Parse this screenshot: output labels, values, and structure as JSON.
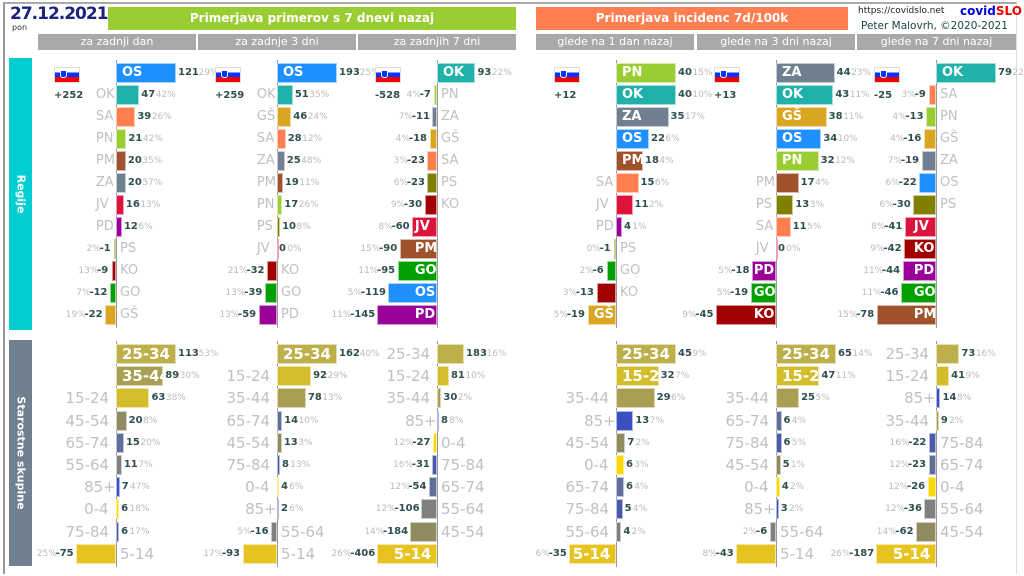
{
  "header": {
    "date": "27.12.2021",
    "day": "pon",
    "title_cases": "Primerjava primerov s 7 dnevi nazaj",
    "title_incidence": "Primerjava incidenc 7d/100k",
    "url": "https://covidslo.net",
    "brand_a": "covid",
    "brand_b": "SLO",
    "author": "Peter Malovrh, ©2020-2021",
    "columns": [
      "za zadnji dan",
      "za zadnje 3 dni",
      "za zadnjih 7 dni",
      "glede na 1 dan nazaj",
      "glede na 3 dni nazaj",
      "glede na 7 dni nazaj"
    ]
  },
  "sections": {
    "regions": "Regije",
    "ages": "Starostne skupine"
  },
  "colors": {
    "cases_banner": "#9acd32",
    "incidence_banner": "#ff7f50",
    "regions_side": "#00ced1",
    "ages_side": "#708090",
    "categories": {
      "OS": "#1e90ff",
      "OK": "#20b2aa",
      "SA": "#ff7f50",
      "PN": "#9acd32",
      "PM": "#a0522d",
      "ZA": "#708090",
      "JV": "#dc143c",
      "PD": "#990099",
      "PS": "#808000",
      "KO": "#a00000",
      "GO": "#00a000",
      "GŠ": "#daa520",
      "25-34": "#bdb04a",
      "35-44": "#a89f52",
      "15-24": "#d4bc2a",
      "45-54": "#8f8a60",
      "65-74": "#5f6f9a",
      "55-64": "#808080",
      "85+": "#3a50c0",
      "0-4": "#ffd700",
      "75-84": "#4a5aaa",
      "5-14": "#e6c31e"
    }
  },
  "chart_data": [
    {
      "type": "bar",
      "orientation": "horizontal",
      "panel": "za zadnji dan",
      "group": "Regije",
      "total": "+252",
      "rows": [
        [
          "OS",
          121,
          "29%"
        ],
        [
          "OK",
          47,
          "42%"
        ],
        [
          "SA",
          39,
          "26%"
        ],
        [
          "PN",
          21,
          "42%"
        ],
        [
          "PM",
          20,
          "35%"
        ],
        [
          "ZA",
          20,
          "57%"
        ],
        [
          "JV",
          16,
          "13%"
        ],
        [
          "PD",
          12,
          "6%"
        ],
        [
          "PS",
          -1,
          "2%"
        ],
        [
          "KO",
          -9,
          "13%"
        ],
        [
          "GO",
          -12,
          "7%"
        ],
        [
          "GŠ",
          -22,
          "19%"
        ]
      ]
    },
    {
      "type": "bar",
      "orientation": "horizontal",
      "panel": "za zadnje 3 dni",
      "group": "Regije",
      "total": "+259",
      "rows": [
        [
          "OS",
          193,
          "25%"
        ],
        [
          "OK",
          51,
          "35%"
        ],
        [
          "GŠ",
          46,
          "24%"
        ],
        [
          "SA",
          28,
          "12%"
        ],
        [
          "ZA",
          25,
          "48%"
        ],
        [
          "PM",
          19,
          "11%"
        ],
        [
          "PN",
          17,
          "26%"
        ],
        [
          "PS",
          10,
          "8%"
        ],
        [
          "JV",
          0,
          "0%"
        ],
        [
          "KO",
          -32,
          "21%"
        ],
        [
          "GO",
          -39,
          "13%"
        ],
        [
          "PD",
          -59,
          "13%"
        ]
      ]
    },
    {
      "type": "bar",
      "orientation": "horizontal",
      "panel": "za zadnjih 7 dni",
      "group": "Regije",
      "total": "-528",
      "rows": [
        [
          "OK",
          93,
          "22%"
        ],
        [
          "PN",
          -7,
          "4%"
        ],
        [
          "ZA",
          -11,
          "7%"
        ],
        [
          "GŠ",
          -18,
          "4%"
        ],
        [
          "SA",
          -23,
          "3%"
        ],
        [
          "PS",
          -23,
          "6%"
        ],
        [
          "KO",
          -30,
          "9%"
        ],
        [
          "JV",
          -60,
          "8%"
        ],
        [
          "PM",
          -90,
          "15%"
        ],
        [
          "GO",
          -95,
          "11%"
        ],
        [
          "OS",
          -119,
          "5%"
        ],
        [
          "PD",
          -145,
          "11%"
        ]
      ]
    },
    {
      "type": "bar",
      "orientation": "horizontal",
      "panel": "glede na 1 dan nazaj",
      "group": "Regije",
      "total": "+12",
      "rows": [
        [
          "PN",
          40,
          "15%"
        ],
        [
          "OK",
          40,
          "10%"
        ],
        [
          "ZA",
          35,
          "17%"
        ],
        [
          "OS",
          22,
          "6%"
        ],
        [
          "PM",
          18,
          "4%"
        ],
        [
          "SA",
          15,
          "6%"
        ],
        [
          "JV",
          11,
          "2%"
        ],
        [
          "PD",
          4,
          "1%"
        ],
        [
          "PS",
          -1,
          "0%"
        ],
        [
          "GO",
          -6,
          "2%"
        ],
        [
          "KO",
          -13,
          "3%"
        ],
        [
          "GŠ",
          -19,
          "5%"
        ]
      ]
    },
    {
      "type": "bar",
      "orientation": "horizontal",
      "panel": "glede na 3 dni nazaj",
      "group": "Regije",
      "total": "+13",
      "rows": [
        [
          "ZA",
          44,
          "23%"
        ],
        [
          "OK",
          43,
          "11%"
        ],
        [
          "GŠ",
          38,
          "11%"
        ],
        [
          "OS",
          34,
          "10%"
        ],
        [
          "PN",
          32,
          "12%"
        ],
        [
          "PM",
          17,
          "4%"
        ],
        [
          "PS",
          13,
          "3%"
        ],
        [
          "SA",
          11,
          "5%"
        ],
        [
          "JV",
          0,
          "0%"
        ],
        [
          "PD",
          -18,
          "5%"
        ],
        [
          "GO",
          -19,
          "5%"
        ],
        [
          "KO",
          -45,
          "9%"
        ]
      ]
    },
    {
      "type": "bar",
      "orientation": "horizontal",
      "panel": "glede na 7 dni nazaj",
      "group": "Regije",
      "total": "-25",
      "rows": [
        [
          "OK",
          79,
          "22%"
        ],
        [
          "SA",
          -9,
          "3%"
        ],
        [
          "PN",
          -13,
          "4%"
        ],
        [
          "GŠ",
          -16,
          "4%"
        ],
        [
          "ZA",
          -19,
          "7%"
        ],
        [
          "OS",
          -22,
          "6%"
        ],
        [
          "PS",
          -30,
          "6%"
        ],
        [
          "JV",
          -41,
          "8%"
        ],
        [
          "KO",
          -42,
          "9%"
        ],
        [
          "PD",
          -44,
          "11%"
        ],
        [
          "GO",
          -46,
          "11%"
        ],
        [
          "PM",
          -78,
          "15%"
        ]
      ]
    },
    {
      "type": "bar",
      "orientation": "horizontal",
      "panel": "za zadnji dan",
      "group": "Starostne skupine",
      "rows": [
        [
          "25-34",
          113,
          "53%"
        ],
        [
          "35-44",
          89,
          "30%"
        ],
        [
          "15-24",
          63,
          "38%"
        ],
        [
          "45-54",
          20,
          "8%"
        ],
        [
          "65-74",
          15,
          "20%"
        ],
        [
          "55-64",
          11,
          "7%"
        ],
        [
          "85+",
          7,
          "47%"
        ],
        [
          "0-4",
          6,
          "18%"
        ],
        [
          "75-84",
          6,
          "17%"
        ],
        [
          "5-14",
          -75,
          "25%"
        ]
      ]
    },
    {
      "type": "bar",
      "orientation": "horizontal",
      "panel": "za zadnje 3 dni",
      "group": "Starostne skupine",
      "rows": [
        [
          "25-34",
          162,
          "40%"
        ],
        [
          "15-24",
          92,
          "29%"
        ],
        [
          "35-44",
          78,
          "13%"
        ],
        [
          "65-74",
          14,
          "10%"
        ],
        [
          "45-54",
          13,
          "3%"
        ],
        [
          "75-84",
          8,
          "13%"
        ],
        [
          "0-4",
          4,
          "6%"
        ],
        [
          "85+",
          2,
          "6%"
        ],
        [
          "55-64",
          -16,
          "5%"
        ],
        [
          "5-14",
          -93,
          "17%"
        ]
      ]
    },
    {
      "type": "bar",
      "orientation": "horizontal",
      "panel": "za zadnjih 7 dni",
      "group": "Starostne skupine",
      "rows": [
        [
          "25-34",
          183,
          "16%"
        ],
        [
          "15-24",
          81,
          "10%"
        ],
        [
          "35-44",
          30,
          "2%"
        ],
        [
          "85+",
          8,
          "8%"
        ],
        [
          "0-4",
          -27,
          "12%"
        ],
        [
          "75-84",
          -31,
          "16%"
        ],
        [
          "65-74",
          -54,
          "12%"
        ],
        [
          "55-64",
          -106,
          "12%"
        ],
        [
          "45-54",
          -184,
          "14%"
        ],
        [
          "5-14",
          -406,
          "26%"
        ]
      ]
    },
    {
      "type": "bar",
      "orientation": "horizontal",
      "panel": "glede na 1 dan nazaj",
      "group": "Starostne skupine",
      "rows": [
        [
          "25-34",
          45,
          "9%"
        ],
        [
          "15-24",
          32,
          "7%"
        ],
        [
          "35-44",
          29,
          "6%"
        ],
        [
          "85+",
          13,
          "7%"
        ],
        [
          "45-54",
          7,
          "2%"
        ],
        [
          "0-4",
          6,
          "3%"
        ],
        [
          "65-74",
          6,
          "4%"
        ],
        [
          "75-84",
          5,
          "4%"
        ],
        [
          "55-64",
          4,
          "2%"
        ],
        [
          "5-14",
          -35,
          "6%"
        ]
      ]
    },
    {
      "type": "bar",
      "orientation": "horizontal",
      "panel": "glede na 3 dni nazaj",
      "group": "Starostne skupine",
      "rows": [
        [
          "25-34",
          65,
          "14%"
        ],
        [
          "15-24",
          47,
          "11%"
        ],
        [
          "35-44",
          25,
          "5%"
        ],
        [
          "65-74",
          6,
          "4%"
        ],
        [
          "75-84",
          6,
          "5%"
        ],
        [
          "45-54",
          5,
          "1%"
        ],
        [
          "0-4",
          4,
          "2%"
        ],
        [
          "85+",
          3,
          "2%"
        ],
        [
          "55-64",
          -6,
          "2%"
        ],
        [
          "5-14",
          -43,
          "8%"
        ]
      ]
    },
    {
      "type": "bar",
      "orientation": "horizontal",
      "panel": "glede na 7 dni nazaj",
      "group": "Starostne skupine",
      "rows": [
        [
          "25-34",
          73,
          "16%"
        ],
        [
          "15-24",
          41,
          "9%"
        ],
        [
          "85+",
          14,
          "8%"
        ],
        [
          "35-44",
          9,
          "2%"
        ],
        [
          "75-84",
          -22,
          "16%"
        ],
        [
          "65-74",
          -23,
          "12%"
        ],
        [
          "0-4",
          -26,
          "12%"
        ],
        [
          "55-64",
          -36,
          "12%"
        ],
        [
          "45-54",
          -62,
          "14%"
        ],
        [
          "5-14",
          -187,
          "26%"
        ]
      ]
    }
  ]
}
